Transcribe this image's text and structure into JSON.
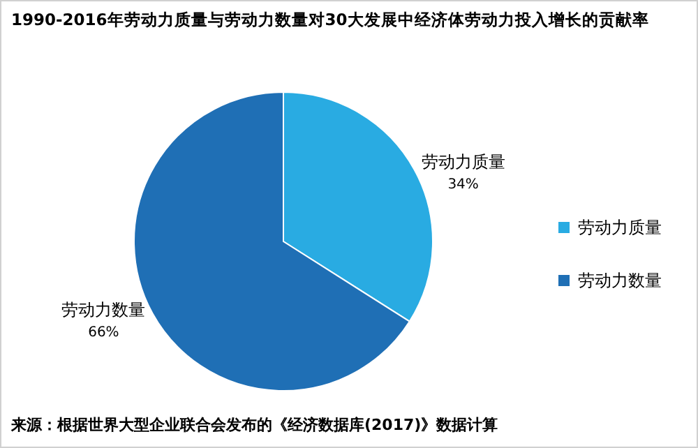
{
  "chart_data": {
    "type": "pie",
    "title": "1990-2016年劳动力质量与劳动力数量对30大发展中经济体劳动力投入增长的贡献率",
    "categories": [
      "劳动力质量",
      "劳动力数量"
    ],
    "values": [
      34,
      66
    ],
    "colors": [
      "#29abe2",
      "#1f6fb5"
    ],
    "value_labels": [
      "34%",
      "66%"
    ],
    "legend": "right",
    "annotations": [
      "来源：根据世界大型企业联合会发布的《经济数据库(2017)》数据计算"
    ]
  }
}
